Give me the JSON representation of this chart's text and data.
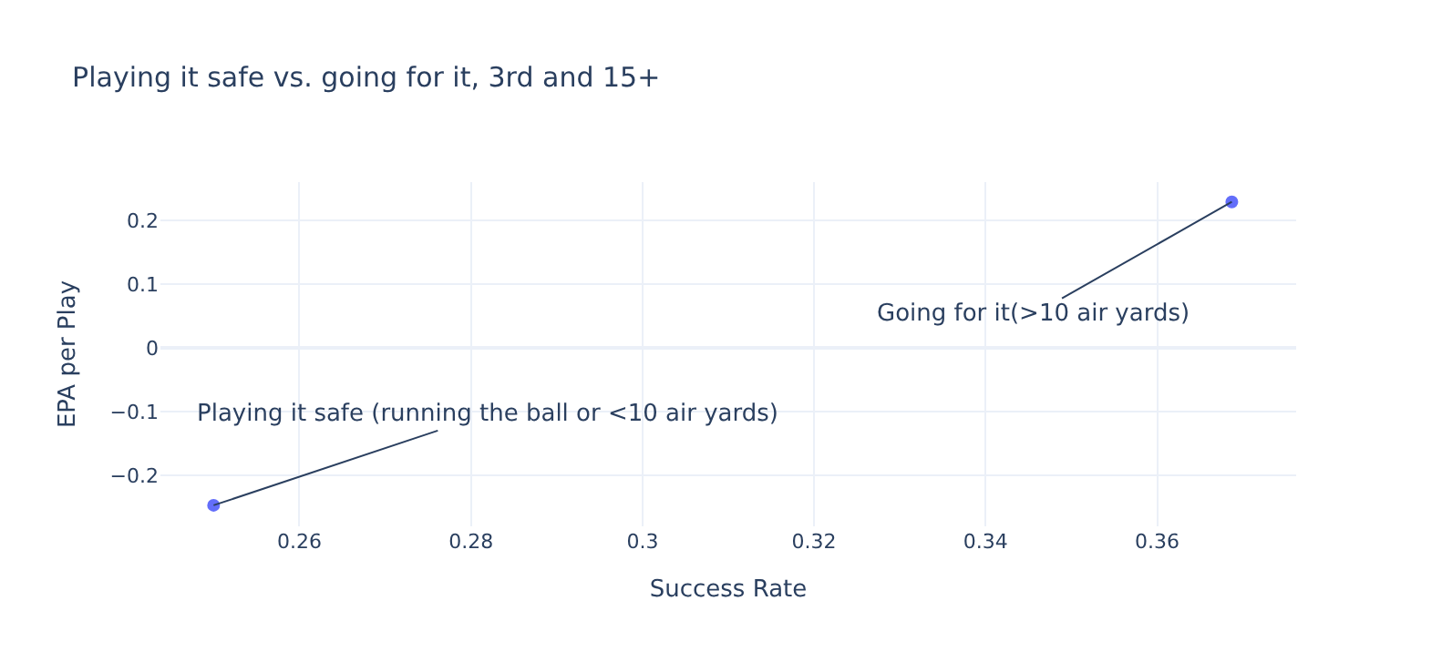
{
  "chart_data": {
    "type": "scatter",
    "title": "Playing it safe vs. going for it, 3rd and 15+",
    "xlabel": "Success Rate",
    "ylabel": "EPA per Play",
    "x": [
      0.25,
      0.3687
    ],
    "series": [
      {
        "color": "#636efa",
        "values": [
          -0.247,
          0.229
        ]
      }
    ],
    "xlim": [
      0.2438,
      0.3762
    ],
    "ylim": [
      -0.28,
      0.26
    ],
    "xticks": [
      0.26,
      0.28,
      0.3,
      0.32,
      0.34,
      0.36
    ],
    "yticks": [
      {
        "value": -0.2,
        "label": "−0.2"
      },
      {
        "value": -0.1,
        "label": "−0.1"
      },
      0,
      0.1,
      0.2
    ],
    "grid": true,
    "marker": "circle",
    "annotations": [
      {
        "text": "Playing it safe (running the ball or <10 air yards)",
        "x": 0.25,
        "y": -0.247
      },
      {
        "text": "Going for it(>10 air yards)",
        "x": 0.3687,
        "y": 0.229
      }
    ]
  }
}
